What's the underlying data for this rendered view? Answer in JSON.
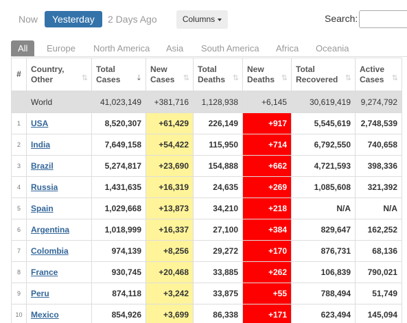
{
  "day_tabs": [
    {
      "label": "Now",
      "active": false
    },
    {
      "label": "Yesterday",
      "active": true
    },
    {
      "label": "2 Days Ago",
      "active": false
    }
  ],
  "columns_button": "Columns",
  "search": {
    "label": "Search:",
    "value": "",
    "placeholder": ""
  },
  "region_tabs": [
    {
      "label": "All",
      "active": true
    },
    {
      "label": "Europe",
      "active": false
    },
    {
      "label": "North America",
      "active": false
    },
    {
      "label": "Asia",
      "active": false
    },
    {
      "label": "South America",
      "active": false
    },
    {
      "label": "Africa",
      "active": false
    },
    {
      "label": "Oceania",
      "active": false
    }
  ],
  "table": {
    "headers": [
      [
        "#"
      ],
      [
        "Country,",
        "Other"
      ],
      [
        "Total",
        "Cases"
      ],
      [
        "New",
        "Cases"
      ],
      [
        "Total",
        "Deaths"
      ],
      [
        "New",
        "Deaths"
      ],
      [
        "Total",
        "Recovered"
      ],
      [
        "Active",
        "Cases"
      ]
    ],
    "world": {
      "country": "World",
      "total_cases": "41,023,149",
      "new_cases": "+381,716",
      "total_deaths": "1,128,938",
      "new_deaths": "+6,145",
      "total_recovered": "30,619,419",
      "active_cases": "9,274,792"
    },
    "rows": [
      {
        "num": "1",
        "country": "USA",
        "total_cases": "8,520,307",
        "new_cases": "+61,429",
        "total_deaths": "226,149",
        "new_deaths": "+917",
        "total_recovered": "5,545,619",
        "active_cases": "2,748,539"
      },
      {
        "num": "2",
        "country": "India",
        "total_cases": "7,649,158",
        "new_cases": "+54,422",
        "total_deaths": "115,950",
        "new_deaths": "+714",
        "total_recovered": "6,792,550",
        "active_cases": "740,658"
      },
      {
        "num": "3",
        "country": "Brazil",
        "total_cases": "5,274,817",
        "new_cases": "+23,690",
        "total_deaths": "154,888",
        "new_deaths": "+662",
        "total_recovered": "4,721,593",
        "active_cases": "398,336"
      },
      {
        "num": "4",
        "country": "Russia",
        "total_cases": "1,431,635",
        "new_cases": "+16,319",
        "total_deaths": "24,635",
        "new_deaths": "+269",
        "total_recovered": "1,085,608",
        "active_cases": "321,392"
      },
      {
        "num": "5",
        "country": "Spain",
        "total_cases": "1,029,668",
        "new_cases": "+13,873",
        "total_deaths": "34,210",
        "new_deaths": "+218",
        "total_recovered": "N/A",
        "active_cases": "N/A"
      },
      {
        "num": "6",
        "country": "Argentina",
        "total_cases": "1,018,999",
        "new_cases": "+16,337",
        "total_deaths": "27,100",
        "new_deaths": "+384",
        "total_recovered": "829,647",
        "active_cases": "162,252"
      },
      {
        "num": "7",
        "country": "Colombia",
        "total_cases": "974,139",
        "new_cases": "+8,256",
        "total_deaths": "29,272",
        "new_deaths": "+170",
        "total_recovered": "876,731",
        "active_cases": "68,136"
      },
      {
        "num": "8",
        "country": "France",
        "total_cases": "930,745",
        "new_cases": "+20,468",
        "total_deaths": "33,885",
        "new_deaths": "+262",
        "total_recovered": "106,839",
        "active_cases": "790,021"
      },
      {
        "num": "9",
        "country": "Peru",
        "total_cases": "874,118",
        "new_cases": "+3,242",
        "total_deaths": "33,875",
        "new_deaths": "+55",
        "total_recovered": "788,494",
        "active_cases": "51,749"
      },
      {
        "num": "10",
        "country": "Mexico",
        "total_cases": "854,926",
        "new_cases": "+3,699",
        "total_deaths": "86,338",
        "new_deaths": "+171",
        "total_recovered": "623,494",
        "active_cases": "145,094"
      }
    ]
  },
  "colors": {
    "active_tab": "#3473aa",
    "new_cases_bg": "#fff49a",
    "new_deaths_bg": "#ff0000",
    "world_row_bg": "#dfdfdf",
    "link": "#336699"
  }
}
